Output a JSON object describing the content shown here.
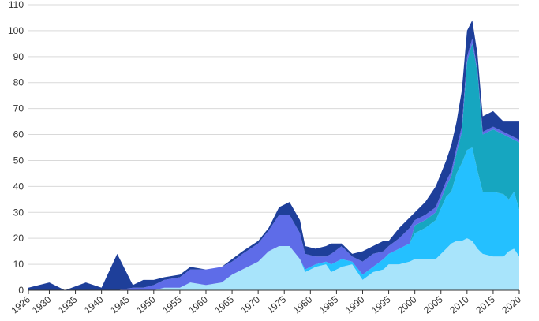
{
  "chart_data": {
    "type": "area",
    "stacked": true,
    "title": "",
    "xlabel": "",
    "ylabel": "",
    "xlim": [
      1926,
      2020
    ],
    "ylim": [
      0,
      110
    ],
    "yticks": [
      0,
      10,
      20,
      30,
      40,
      50,
      60,
      70,
      80,
      90,
      100,
      110
    ],
    "xticks": [
      1926,
      1930,
      1935,
      1940,
      1945,
      1950,
      1955,
      1960,
      1965,
      1970,
      1975,
      1980,
      1985,
      1990,
      1995,
      2000,
      2005,
      2010,
      2015,
      2020
    ],
    "x_tick_labels_rotated": true,
    "grid": "horizontal",
    "legend": "none",
    "x": [
      1926,
      1930,
      1933,
      1937,
      1940,
      1943,
      1946,
      1948,
      1950,
      1952,
      1955,
      1957,
      1960,
      1963,
      1965,
      1967,
      1970,
      1972,
      1974,
      1976,
      1978,
      1979,
      1981,
      1983,
      1984,
      1986,
      1988,
      1990,
      1992,
      1994,
      1995,
      1997,
      1999,
      2000,
      2002,
      2004,
      2006,
      2007,
      2008,
      2009,
      2010,
      2011,
      2012,
      2013,
      2015,
      2017,
      2018,
      2019,
      2020
    ],
    "series": [
      {
        "color": "#a8e4fb",
        "values": [
          0,
          0,
          0,
          0,
          0,
          0,
          0,
          0,
          0,
          1,
          1,
          3,
          2,
          3,
          6,
          8,
          11,
          15,
          17,
          17,
          12,
          7,
          9,
          10,
          7,
          9,
          10,
          4,
          7,
          8,
          10,
          10,
          11,
          12,
          12,
          12,
          16,
          18,
          19,
          19,
          20,
          19,
          16,
          14,
          13,
          13,
          15,
          16,
          13
        ]
      },
      {
        "color": "#24c0ff",
        "values": [
          0,
          0,
          0,
          0,
          0,
          0,
          0,
          0,
          0,
          0,
          0,
          0,
          0,
          0,
          0,
          0,
          0,
          0,
          0,
          0,
          0,
          1,
          1,
          1,
          3,
          3,
          1,
          2,
          2,
          4,
          4,
          6,
          7,
          10,
          12,
          15,
          20,
          20,
          26,
          30,
          34,
          36,
          30,
          24,
          25,
          24,
          20,
          22,
          18
        ]
      },
      {
        "color": "#16a6c0",
        "values": [
          0,
          0,
          0,
          0,
          0,
          0,
          0,
          0,
          0,
          0,
          0,
          0,
          0,
          0,
          0,
          0,
          0,
          0,
          0,
          0,
          0,
          0,
          0,
          0,
          0,
          0,
          0,
          0,
          0,
          0,
          0,
          0,
          0,
          3,
          3,
          3,
          4,
          6,
          8,
          12,
          34,
          40,
          38,
          22,
          24,
          23,
          24,
          20,
          26
        ]
      },
      {
        "color": "#5e6ce8",
        "values": [
          0,
          0,
          0,
          0,
          0,
          0,
          1,
          1,
          2,
          3,
          4,
          5,
          6,
          6,
          5,
          6,
          7,
          8,
          12,
          12,
          10,
          6,
          3,
          2,
          4,
          5,
          2,
          5,
          5,
          3,
          3,
          4,
          6,
          2,
          2,
          2,
          2,
          2,
          2,
          2,
          2,
          2,
          1,
          1,
          1,
          1,
          1,
          1,
          1
        ]
      },
      {
        "color": "#1e3f9a",
        "values": [
          1,
          3,
          0,
          3,
          1,
          14,
          1,
          3,
          2,
          1,
          1,
          1,
          0,
          0,
          1,
          1,
          1,
          1,
          3,
          5,
          5,
          3,
          3,
          4,
          4,
          1,
          1,
          4,
          3,
          4,
          2,
          4,
          4,
          3,
          5,
          8,
          8,
          10,
          10,
          14,
          10,
          7,
          6,
          6,
          6,
          4,
          5,
          6,
          7
        ]
      }
    ]
  }
}
